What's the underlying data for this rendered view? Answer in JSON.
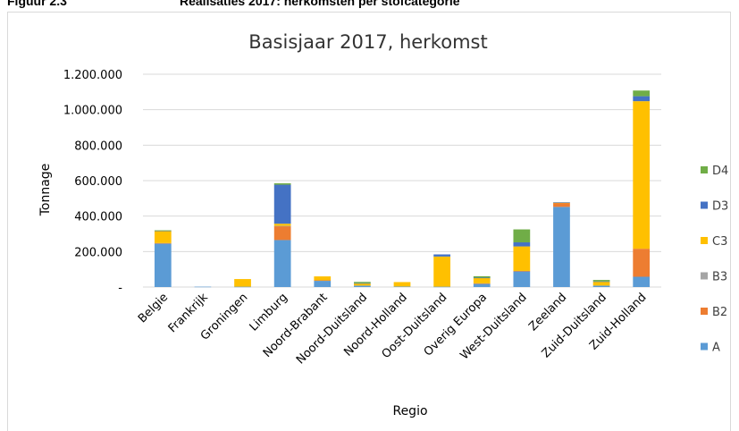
{
  "figure": {
    "number": "Figuur 2.3",
    "caption": "Realisaties 2017: herkomsten per stofcategorie"
  },
  "chart_data": {
    "type": "bar",
    "stacked": true,
    "title": "Basisjaar 2017, herkomst",
    "xlabel": "Regio",
    "ylabel": "Tonnage",
    "ylim": [
      0,
      1200000
    ],
    "yticks": [
      0,
      200000,
      400000,
      600000,
      800000,
      1000000,
      1200000
    ],
    "ytick_labels": [
      "-",
      "200.000",
      "400.000",
      "600.000",
      "800.000",
      "1.000.000",
      "1.200.000"
    ],
    "grid": true,
    "legend_position": "right",
    "categories": [
      "Belgie",
      "Frankrijk",
      "Groningen",
      "Limburg",
      "Noord-Brabant",
      "Noord-Duitsland",
      "Noord-Holland",
      "Oost-Duitsland",
      "Overig Europa",
      "West-Duitsland",
      "Zeeland",
      "Zuid-Duitsland",
      "Zuid-Holland"
    ],
    "series": [
      {
        "name": "A",
        "color": "#5b9bd5",
        "values": [
          245000,
          2000,
          2000,
          265000,
          35000,
          8000,
          3000,
          2000,
          18000,
          88000,
          452000,
          8000,
          58000
        ]
      },
      {
        "name": "B2",
        "color": "#ed7d31",
        "values": [
          3000,
          0,
          0,
          78000,
          3000,
          0,
          0,
          0,
          3000,
          3000,
          22000,
          0,
          158000
        ]
      },
      {
        "name": "B3",
        "color": "#a5a5a5",
        "values": [
          0,
          0,
          0,
          2000,
          0,
          0,
          0,
          0,
          0,
          0,
          0,
          0,
          0
        ]
      },
      {
        "name": "C3",
        "color": "#ffc000",
        "values": [
          67000,
          0,
          43000,
          12000,
          22000,
          12000,
          25000,
          170000,
          30000,
          138000,
          2000,
          22000,
          832000
        ]
      },
      {
        "name": "D3",
        "color": "#4472c4",
        "values": [
          3000,
          0,
          0,
          220000,
          0,
          2000,
          0,
          12000,
          2000,
          23000,
          2000,
          2000,
          28000
        ]
      },
      {
        "name": "D4",
        "color": "#70ad47",
        "values": [
          2000,
          0,
          0,
          8000,
          0,
          7000,
          0,
          0,
          8000,
          73000,
          0,
          8000,
          32000
        ]
      }
    ]
  }
}
